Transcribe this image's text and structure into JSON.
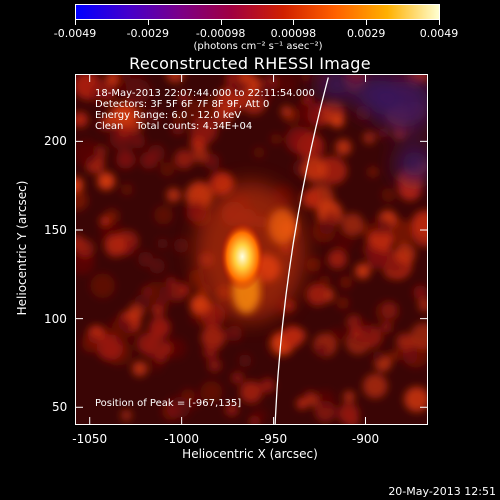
{
  "colorbar": {
    "colors": [
      "#0000ff",
      "#4400cc",
      "#7a0088",
      "#a00040",
      "#d02000",
      "#ff6000",
      "#ffb000",
      "#ffffd0"
    ],
    "ticks": [
      {
        "value": "-0.0049"
      },
      {
        "value": "-0.0029"
      },
      {
        "value": "-0.00098"
      },
      {
        "value": "0.00098"
      },
      {
        "value": "0.0029"
      },
      {
        "value": "0.0049"
      }
    ],
    "units": "(photons cm⁻² s⁻¹ asec⁻²)"
  },
  "title": "Reconstructed RHESSI Image",
  "annotations": {
    "time_range": "18-May-2013 22:07:44.000 to 22:11:54.000",
    "detectors": "Detectors: 3F 5F 6F 7F 8F 9F, Att 0",
    "energy": "Energy Range: 6.0 - 12.0 keV",
    "clean": "Clean    Total counts: 4.34E+04",
    "peak": "Position of Peak = [-967,135]"
  },
  "axes": {
    "xlabel": "Heliocentric X (arcsec)",
    "ylabel": "Heliocentric Y (arcsec)",
    "xlim": [
      -1058,
      -866
    ],
    "ylim": [
      40,
      238
    ],
    "xticks": [
      {
        "label": "-1050",
        "value": -1050
      },
      {
        "label": "-1000",
        "value": -1000
      },
      {
        "label": "-950",
        "value": -950
      },
      {
        "label": "-900",
        "value": -900
      }
    ],
    "yticks": [
      {
        "label": "50",
        "value": 50
      },
      {
        "label": "100",
        "value": 100
      },
      {
        "label": "150",
        "value": 150
      },
      {
        "label": "200",
        "value": 200
      }
    ]
  },
  "peak_position": [
    -967,
    135
  ],
  "limb_color": "#ffffff",
  "footer": "20-May-2013 12:51"
}
